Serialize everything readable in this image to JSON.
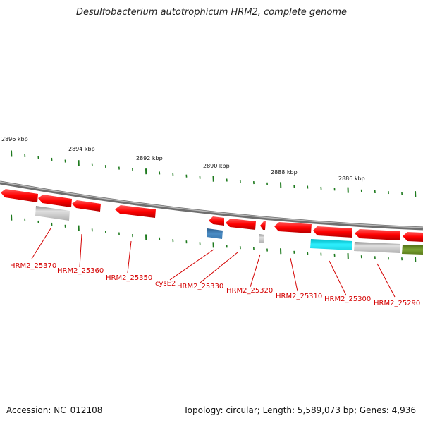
{
  "title": "Desulfobacterium autotrophicum HRM2, complete genome",
  "footer": {
    "accession": "Accession: NC_012108",
    "summary": "Topology: circular; Length: 5,589,073 bp; Genes: 4,936"
  },
  "colors": {
    "backbone": "#8c8c8c",
    "tick": "#1e7a1e",
    "forward_gene": "#ff1a1a",
    "rna_gene": "#3a78b0",
    "grey_feature": "#bdbdbd",
    "cyan_feature": "#22e6f0",
    "olive_feature": "#6b8e23",
    "label": "#d40000"
  },
  "scale_labels": [
    "2896 kbp",
    "2894 kbp",
    "2892 kbp",
    "2890 kbp",
    "2888 kbp",
    "2886 kbp"
  ],
  "gene_labels": [
    "HRM2_25370",
    "HRM2_25360",
    "HRM2_25350",
    "cysE2",
    "HRM2_25330",
    "HRM2_25320",
    "HRM2_25310",
    "HRM2_25300",
    "HRM2_25290"
  ]
}
